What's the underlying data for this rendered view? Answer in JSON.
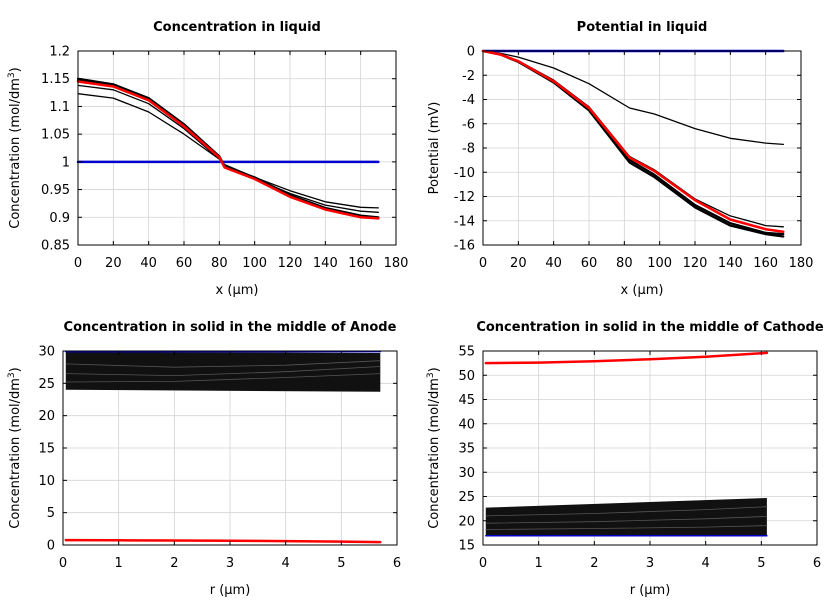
{
  "chart_data": [
    {
      "id": "conc-liquid",
      "type": "line",
      "title": "Concentration in liquid",
      "xlabel": "x (µm)",
      "ylabel": "Concentration (mol/dm",
      "ylabel_sup": "3",
      "ylabel_end": ")",
      "xlim": [
        0,
        180
      ],
      "ylim": [
        0.85,
        1.2
      ],
      "xticks": [
        0,
        20,
        40,
        60,
        80,
        100,
        120,
        140,
        160,
        180
      ],
      "xtick_labels": [
        "0",
        "20",
        "40",
        "60",
        "80",
        "100",
        "120",
        "140",
        "160",
        "180"
      ],
      "yticks": [
        0.85,
        0.9,
        0.95,
        1.0,
        1.05,
        1.1,
        1.15,
        1.2
      ],
      "ytick_labels": [
        "0.85",
        "0.9",
        "0.95",
        "1",
        "1.05",
        "1.1",
        "1.15",
        "1.2"
      ],
      "series": [
        {
          "name": "t0",
          "color": "#0000cc",
          "width": 2.5,
          "x": [
            0,
            170
          ],
          "y": [
            1.0,
            1.0
          ]
        },
        {
          "name": "t1",
          "color": "#000000",
          "width": 1.3,
          "x": [
            0,
            20,
            40,
            60,
            80,
            83,
            100,
            120,
            140,
            160,
            170
          ],
          "y": [
            1.123,
            1.115,
            1.09,
            1.05,
            1.005,
            0.995,
            0.972,
            0.948,
            0.928,
            0.918,
            0.917
          ]
        },
        {
          "name": "t2",
          "color": "#000000",
          "width": 1.3,
          "x": [
            0,
            20,
            40,
            60,
            80,
            83,
            100,
            120,
            140,
            160,
            170
          ],
          "y": [
            1.138,
            1.13,
            1.105,
            1.06,
            1.005,
            0.993,
            0.97,
            0.943,
            0.922,
            0.911,
            0.909
          ]
        },
        {
          "name": "t3",
          "color": "#000000",
          "width": 2.2,
          "x": [
            0,
            20,
            40,
            60,
            80,
            83,
            100,
            120,
            140,
            160,
            170
          ],
          "y": [
            1.15,
            1.14,
            1.115,
            1.068,
            1.01,
            0.992,
            0.972,
            0.94,
            0.917,
            0.903,
            0.9
          ]
        },
        {
          "name": "t4",
          "color": "#000000",
          "width": 2.2,
          "x": [
            0,
            20,
            40,
            60,
            80,
            83,
            100,
            120,
            140,
            160,
            170
          ],
          "y": [
            1.147,
            1.138,
            1.113,
            1.066,
            1.009,
            0.991,
            0.97,
            0.938,
            0.915,
            0.901,
            0.899
          ]
        },
        {
          "name": "tend",
          "color": "#ff0000",
          "width": 2.5,
          "x": [
            0,
            20,
            40,
            60,
            80,
            83,
            100,
            120,
            140,
            160,
            170
          ],
          "y": [
            1.145,
            1.136,
            1.111,
            1.064,
            1.008,
            0.99,
            0.969,
            0.937,
            0.914,
            0.9,
            0.898
          ]
        }
      ]
    },
    {
      "id": "pot-liquid",
      "type": "line",
      "title": "Potential in liquid",
      "xlabel": "x (µm)",
      "ylabel": "Potential (mV)",
      "ylabel_sup": "",
      "ylabel_end": "",
      "xlim": [
        0,
        180
      ],
      "ylim": [
        -16,
        0
      ],
      "xticks": [
        0,
        20,
        40,
        60,
        80,
        100,
        120,
        140,
        160,
        180
      ],
      "xtick_labels": [
        "0",
        "20",
        "40",
        "60",
        "80",
        "100",
        "120",
        "140",
        "160",
        "180"
      ],
      "yticks": [
        -16,
        -14,
        -12,
        -10,
        -8,
        -6,
        -4,
        -2,
        0
      ],
      "ytick_labels": [
        "-16",
        "-14",
        "-12",
        "-10",
        "-8",
        "-6",
        "-4",
        "-2",
        "0"
      ],
      "series": [
        {
          "name": "t0",
          "color": "#0000cc",
          "width": 2.5,
          "x": [
            0,
            170
          ],
          "y": [
            0,
            0
          ]
        },
        {
          "name": "t1",
          "color": "#000000",
          "width": 1.3,
          "x": [
            0,
            10,
            20,
            40,
            60,
            83,
            97,
            120,
            140,
            160,
            170
          ],
          "y": [
            0,
            -0.2,
            -0.5,
            -1.4,
            -2.7,
            -4.7,
            -5.2,
            -6.4,
            -7.2,
            -7.6,
            -7.7
          ]
        },
        {
          "name": "t2",
          "color": "#000000",
          "width": 1.3,
          "x": [
            0,
            10,
            20,
            40,
            60,
            83,
            97,
            120,
            140,
            160,
            170
          ],
          "y": [
            0,
            -0.3,
            -0.8,
            -2.4,
            -4.6,
            -8.7,
            -9.8,
            -12.2,
            -13.6,
            -14.4,
            -14.5
          ]
        },
        {
          "name": "t3",
          "color": "#000000",
          "width": 2.2,
          "x": [
            0,
            10,
            20,
            40,
            60,
            83,
            97,
            120,
            140,
            160,
            170
          ],
          "y": [
            0,
            -0.3,
            -0.9,
            -2.6,
            -4.9,
            -9.2,
            -10.4,
            -12.9,
            -14.4,
            -15.1,
            -15.3
          ]
        },
        {
          "name": "t4",
          "color": "#000000",
          "width": 2.2,
          "x": [
            0,
            10,
            20,
            40,
            60,
            83,
            97,
            120,
            140,
            160,
            170
          ],
          "y": [
            0,
            -0.3,
            -0.9,
            -2.5,
            -4.8,
            -9.0,
            -10.2,
            -12.7,
            -14.2,
            -15.0,
            -15.1
          ]
        },
        {
          "name": "tend",
          "color": "#ff0000",
          "width": 2.5,
          "x": [
            0,
            10,
            20,
            40,
            60,
            83,
            97,
            120,
            140,
            160,
            170
          ],
          "y": [
            0,
            -0.3,
            -0.85,
            -2.5,
            -4.7,
            -8.8,
            -9.9,
            -12.3,
            -13.9,
            -14.7,
            -14.9
          ]
        }
      ]
    },
    {
      "id": "conc-solid-anode",
      "type": "line",
      "title": "Concentration in solid in the middle of Anode",
      "xlabel": "r (µm)",
      "ylabel": "Concentration (mol/dm",
      "ylabel_sup": "3",
      "ylabel_end": ")",
      "xlim": [
        0,
        6
      ],
      "ylim": [
        0,
        30
      ],
      "xticks": [
        0,
        1,
        2,
        3,
        4,
        5,
        6
      ],
      "xtick_labels": [
        "0",
        "1",
        "2",
        "3",
        "4",
        "5",
        "6"
      ],
      "yticks": [
        0,
        5,
        10,
        15,
        20,
        25,
        30
      ],
      "ytick_labels": [
        "0",
        "5",
        "10",
        "15",
        "20",
        "25",
        "30"
      ],
      "band": {
        "color": "#111111",
        "x": [
          0.05,
          5.7
        ],
        "top": [
          29.9,
          29.7
        ],
        "bottom": [
          24.0,
          23.7
        ]
      },
      "series": [
        {
          "name": "t0",
          "color": "#0000cc",
          "width": 1.5,
          "x": [
            0.05,
            5.7
          ],
          "y": [
            29.9,
            29.9
          ]
        },
        {
          "name": "inner1",
          "color": "#555555",
          "width": 0.8,
          "x": [
            0.05,
            2,
            4,
            5.7
          ],
          "y": [
            28.0,
            27.5,
            27.8,
            28.5
          ]
        },
        {
          "name": "inner2",
          "color": "#555555",
          "width": 0.8,
          "x": [
            0.05,
            2,
            4,
            5.7
          ],
          "y": [
            26.5,
            26.2,
            26.8,
            27.6
          ]
        },
        {
          "name": "inner3",
          "color": "#555555",
          "width": 0.8,
          "x": [
            0.05,
            2,
            4,
            5.7
          ],
          "y": [
            25.2,
            25.3,
            25.9,
            26.5
          ]
        },
        {
          "name": "tend",
          "color": "#ff0000",
          "width": 2.5,
          "x": [
            0.05,
            1,
            2,
            3,
            4,
            5,
            5.7
          ],
          "y": [
            0.75,
            0.73,
            0.7,
            0.66,
            0.6,
            0.52,
            0.45
          ]
        }
      ]
    },
    {
      "id": "conc-solid-cathode",
      "type": "line",
      "title": "Concentration in solid in the middle of Cathode",
      "xlabel": "r (µm)",
      "ylabel": "Concentration (mol/dm",
      "ylabel_sup": "3",
      "ylabel_end": ")",
      "xlim": [
        0,
        6
      ],
      "ylim": [
        15,
        55
      ],
      "xticks": [
        0,
        1,
        2,
        3,
        4,
        5,
        6
      ],
      "xtick_labels": [
        "0",
        "1",
        "2",
        "3",
        "4",
        "5",
        "6"
      ],
      "yticks": [
        15,
        20,
        25,
        30,
        35,
        40,
        45,
        50,
        55
      ],
      "ytick_labels": [
        "15",
        "20",
        "25",
        "30",
        "35",
        "40",
        "45",
        "50",
        "55"
      ],
      "band": {
        "color": "#111111",
        "x": [
          0.05,
          5.1
        ],
        "top": [
          22.7,
          24.7
        ],
        "bottom": [
          16.9,
          16.9
        ]
      },
      "series": [
        {
          "name": "t0",
          "color": "#0000cc",
          "width": 1.5,
          "x": [
            0.05,
            5.1
          ],
          "y": [
            16.9,
            16.9
          ]
        },
        {
          "name": "inner1",
          "color": "#555555",
          "width": 0.8,
          "x": [
            0.05,
            2,
            4,
            5.1
          ],
          "y": [
            21.0,
            21.5,
            22.3,
            22.9
          ]
        },
        {
          "name": "inner2",
          "color": "#555555",
          "width": 0.8,
          "x": [
            0.05,
            2,
            4,
            5.1
          ],
          "y": [
            19.5,
            19.8,
            20.4,
            20.9
          ]
        },
        {
          "name": "inner3",
          "color": "#555555",
          "width": 0.8,
          "x": [
            0.05,
            2,
            4,
            5.1
          ],
          "y": [
            18.2,
            18.4,
            18.7,
            19.0
          ]
        },
        {
          "name": "tend",
          "color": "#ff0000",
          "width": 2.5,
          "x": [
            0.05,
            1,
            2,
            3,
            4,
            5.1
          ],
          "y": [
            52.5,
            52.6,
            52.9,
            53.3,
            53.8,
            54.6
          ]
        }
      ]
    }
  ]
}
